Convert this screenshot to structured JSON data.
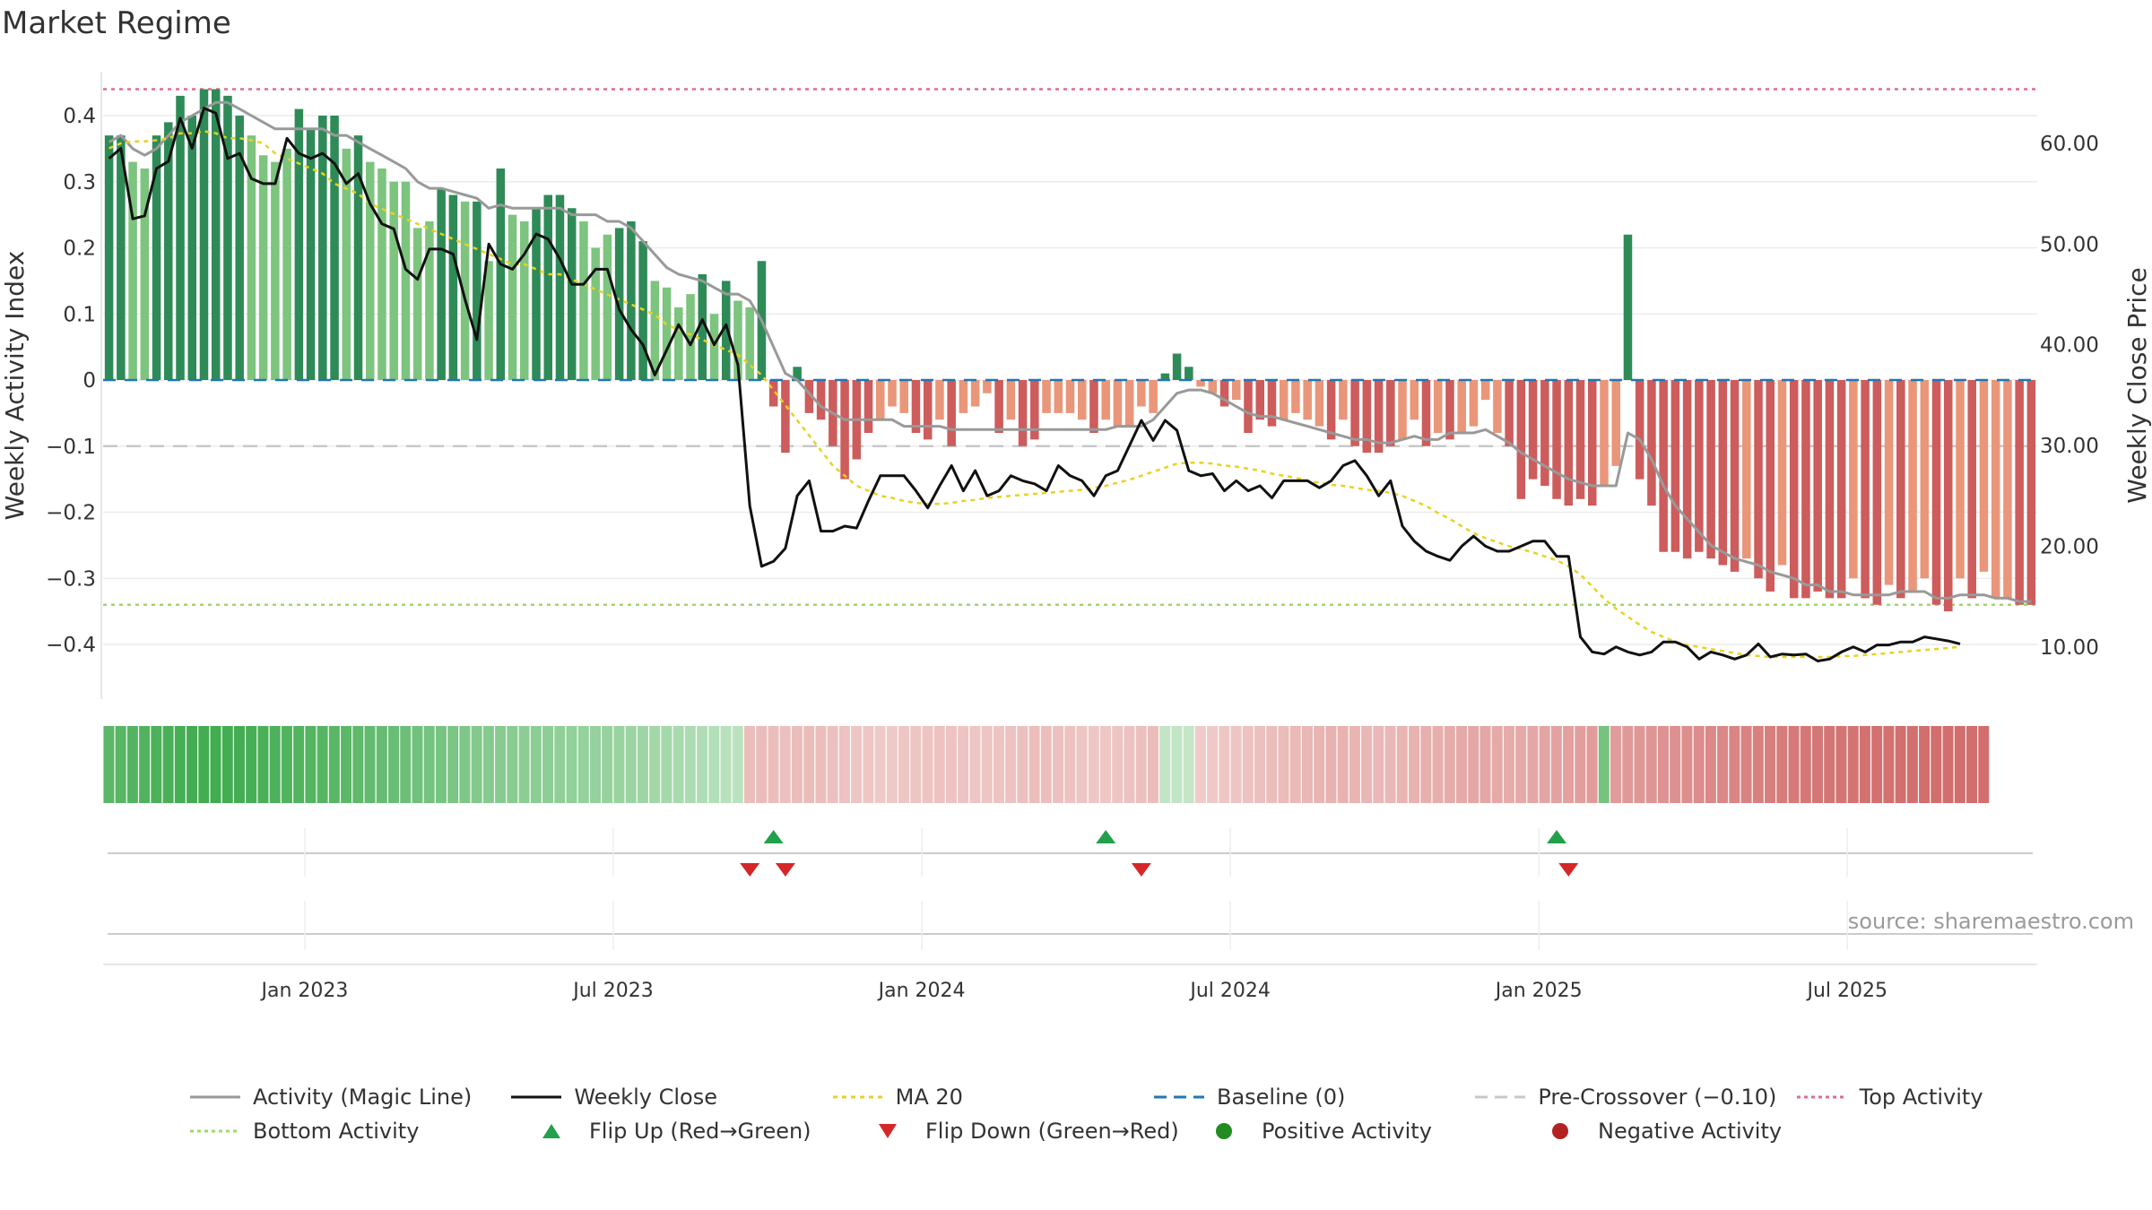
{
  "title": "Market Regime",
  "source": "source: sharemaestro.com",
  "chart_data": {
    "type": "bar",
    "title": "Market Regime",
    "ylabel": "Weekly Activity Index",
    "y2label": "Weekly Close Price",
    "ylim": [
      -0.48,
      0.48
    ],
    "y2lim": [
      5,
      68
    ],
    "yticks": [
      -0.4,
      -0.3,
      -0.2,
      -0.1,
      0,
      0.1,
      0.2,
      0.3,
      0.4
    ],
    "ytick_labels": [
      "−0.4",
      "−0.3",
      "−0.2",
      "−0.1",
      "0",
      "0.1",
      "0.2",
      "0.3",
      "0.4"
    ],
    "y2ticks": [
      10,
      20,
      30,
      40,
      50,
      60
    ],
    "y2tick_labels": [
      "10.00",
      "20.00",
      "30.00",
      "40.00",
      "50.00",
      "60.00"
    ],
    "xticks": [
      {
        "label": "Jan 2023",
        "week": 17
      },
      {
        "label": "Jul 2023",
        "week": 43
      },
      {
        "label": "Jan 2024",
        "week": 69
      },
      {
        "label": "Jul 2024",
        "week": 95
      },
      {
        "label": "Jan 2025",
        "week": 121
      },
      {
        "label": "Jul 2025",
        "week": 147
      }
    ],
    "top_activity": 0.44,
    "bottom_activity": -0.34,
    "pre_crossover": -0.1,
    "baseline": 0,
    "activity": [
      0.37,
      0.37,
      0.33,
      0.32,
      0.37,
      0.39,
      0.43,
      0.4,
      0.44,
      0.44,
      0.43,
      0.4,
      0.37,
      0.34,
      0.33,
      0.35,
      0.41,
      0.38,
      0.4,
      0.4,
      0.35,
      0.37,
      0.33,
      0.32,
      0.3,
      0.3,
      0.23,
      0.24,
      0.29,
      0.28,
      0.27,
      0.27,
      0.18,
      0.32,
      0.25,
      0.24,
      0.26,
      0.28,
      0.28,
      0.26,
      0.24,
      0.2,
      0.22,
      0.23,
      0.24,
      0.21,
      0.15,
      0.14,
      0.11,
      0.13,
      0.16,
      0.1,
      0.15,
      0.12,
      0.11,
      0.18,
      -0.04,
      -0.11,
      0.02,
      -0.05,
      -0.06,
      -0.1,
      -0.15,
      -0.12,
      -0.08,
      -0.06,
      -0.04,
      -0.05,
      -0.08,
      -0.09,
      -0.06,
      -0.1,
      -0.05,
      -0.04,
      -0.02,
      -0.08,
      -0.06,
      -0.1,
      -0.09,
      -0.05,
      -0.05,
      -0.05,
      -0.06,
      -0.08,
      -0.06,
      -0.07,
      -0.07,
      -0.04,
      -0.05,
      0.01,
      0.04,
      0.02,
      -0.01,
      -0.02,
      -0.04,
      -0.03,
      -0.08,
      -0.06,
      -0.07,
      -0.06,
      -0.05,
      -0.06,
      -0.07,
      -0.09,
      -0.06,
      -0.1,
      -0.11,
      -0.11,
      -0.1,
      -0.09,
      -0.06,
      -0.1,
      -0.08,
      -0.09,
      -0.08,
      -0.07,
      -0.03,
      -0.08,
      -0.1,
      -0.18,
      -0.15,
      -0.16,
      -0.18,
      -0.19,
      -0.18,
      -0.19,
      -0.16,
      -0.13,
      0.22,
      -0.15,
      -0.19,
      -0.26,
      -0.26,
      -0.27,
      -0.26,
      -0.27,
      -0.28,
      -0.29,
      -0.27,
      -0.3,
      -0.32,
      -0.28,
      -0.33,
      -0.33,
      -0.32,
      -0.33,
      -0.33,
      -0.3,
      -0.33,
      -0.34,
      -0.31,
      -0.33,
      -0.32,
      -0.3,
      -0.34,
      -0.35,
      -0.3,
      -0.33,
      -0.29,
      -0.33,
      -0.33,
      -0.34,
      -0.34
    ],
    "magic_line": [
      0.36,
      0.37,
      0.35,
      0.34,
      0.35,
      0.37,
      0.39,
      0.4,
      0.41,
      0.42,
      0.42,
      0.41,
      0.4,
      0.39,
      0.38,
      0.38,
      0.38,
      0.38,
      0.38,
      0.37,
      0.37,
      0.36,
      0.35,
      0.34,
      0.33,
      0.32,
      0.3,
      0.29,
      0.29,
      0.285,
      0.28,
      0.275,
      0.26,
      0.265,
      0.26,
      0.26,
      0.26,
      0.26,
      0.26,
      0.25,
      0.25,
      0.25,
      0.24,
      0.24,
      0.23,
      0.21,
      0.19,
      0.17,
      0.16,
      0.155,
      0.15,
      0.14,
      0.13,
      0.13,
      0.12,
      0.09,
      0.05,
      0.01,
      0.0,
      -0.02,
      -0.04,
      -0.05,
      -0.06,
      -0.06,
      -0.06,
      -0.06,
      -0.06,
      -0.07,
      -0.07,
      -0.07,
      -0.07,
      -0.075,
      -0.075,
      -0.075,
      -0.075,
      -0.075,
      -0.075,
      -0.075,
      -0.075,
      -0.075,
      -0.075,
      -0.075,
      -0.075,
      -0.075,
      -0.075,
      -0.07,
      -0.07,
      -0.07,
      -0.06,
      -0.04,
      -0.02,
      -0.015,
      -0.015,
      -0.02,
      -0.03,
      -0.04,
      -0.05,
      -0.055,
      -0.055,
      -0.06,
      -0.065,
      -0.07,
      -0.075,
      -0.08,
      -0.085,
      -0.09,
      -0.09,
      -0.095,
      -0.095,
      -0.09,
      -0.085,
      -0.09,
      -0.09,
      -0.08,
      -0.08,
      -0.08,
      -0.075,
      -0.085,
      -0.095,
      -0.11,
      -0.12,
      -0.13,
      -0.14,
      -0.15,
      -0.155,
      -0.16,
      -0.16,
      -0.16,
      -0.08,
      -0.09,
      -0.12,
      -0.16,
      -0.19,
      -0.21,
      -0.23,
      -0.25,
      -0.26,
      -0.27,
      -0.275,
      -0.28,
      -0.29,
      -0.295,
      -0.3,
      -0.31,
      -0.31,
      -0.32,
      -0.32,
      -0.325,
      -0.325,
      -0.325,
      -0.325,
      -0.32,
      -0.32,
      -0.32,
      -0.33,
      -0.33,
      -0.325,
      -0.325,
      -0.325,
      -0.33,
      -0.33,
      -0.335,
      -0.335
    ],
    "weekly_close": [
      58.5,
      59.5,
      52.5,
      52.8,
      57.5,
      58.2,
      62.5,
      59.5,
      63.5,
      63.0,
      58.5,
      59.0,
      56.5,
      56.0,
      56.0,
      60.5,
      59.0,
      58.5,
      59.0,
      58.0,
      56.0,
      57.0,
      54.0,
      52.0,
      51.5,
      47.5,
      46.5,
      49.5,
      49.5,
      49.0,
      44.5,
      40.5,
      50.0,
      48.0,
      47.5,
      49.0,
      51.0,
      50.5,
      48.5,
      46.0,
      46.0,
      47.5,
      47.5,
      43.5,
      41.5,
      40.0,
      37.0,
      39.5,
      42.0,
      40.0,
      42.5,
      40.0,
      42.0,
      38.0,
      24.0,
      18.0,
      18.5,
      19.8,
      25.0,
      26.5,
      21.5,
      21.5,
      22.0,
      21.8,
      24.5,
      27.0,
      27.0,
      27.0,
      25.5,
      23.8,
      26.0,
      28.0,
      25.5,
      27.5,
      25.0,
      25.5,
      27.0,
      26.5,
      26.2,
      25.5,
      28.0,
      27.0,
      26.5,
      25.0,
      27.0,
      27.5,
      30.0,
      32.5,
      30.5,
      32.5,
      31.5,
      27.5,
      27.0,
      27.2,
      25.5,
      26.5,
      25.5,
      26.0,
      24.8,
      26.5,
      26.5,
      26.5,
      25.8,
      26.5,
      28.0,
      28.5,
      27.0,
      25.0,
      26.5,
      22.0,
      20.5,
      19.5,
      19.0,
      18.6,
      20.0,
      21.0,
      20.0,
      19.5,
      19.5,
      20.0,
      20.5,
      20.5,
      19.0,
      19.0,
      11.0,
      9.5,
      9.3,
      10.0,
      9.5,
      9.2,
      9.5,
      10.5,
      10.5,
      10.0,
      8.8,
      9.5,
      9.2,
      8.8,
      9.2,
      10.3,
      9.0,
      9.3,
      9.2,
      9.3,
      8.6,
      8.8,
      9.5,
      10.0,
      9.5,
      10.2,
      10.2,
      10.5,
      10.5,
      11.0,
      10.8,
      10.6,
      10.3
    ],
    "ma20": [
      59.5,
      60.0,
      60.2,
      60.2,
      60.3,
      60.5,
      61.0,
      61.0,
      61.2,
      61.0,
      60.5,
      60.5,
      60.3,
      60.0,
      59.0,
      58.5,
      58.0,
      57.5,
      57.0,
      56.0,
      55.5,
      55.0,
      54.0,
      53.5,
      53.0,
      52.5,
      52.0,
      51.5,
      51.0,
      50.5,
      50.0,
      49.5,
      49.0,
      48.5,
      48.0,
      48.0,
      47.5,
      47.0,
      47.0,
      46.5,
      46.0,
      45.5,
      45.0,
      44.5,
      44.0,
      43.5,
      43.0,
      42.0,
      41.5,
      41.0,
      40.5,
      40.0,
      39.5,
      39.0,
      38.0,
      37.0,
      35.5,
      34.0,
      32.5,
      31.0,
      29.5,
      28.0,
      27.0,
      26.0,
      25.5,
      25.0,
      24.8,
      24.5,
      24.3,
      24.2,
      24.2,
      24.3,
      24.5,
      24.6,
      24.8,
      24.9,
      25.0,
      25.1,
      25.2,
      25.3,
      25.4,
      25.5,
      25.6,
      25.8,
      26.0,
      26.3,
      26.6,
      27.0,
      27.4,
      27.8,
      28.2,
      28.3,
      28.3,
      28.2,
      28.0,
      27.9,
      27.7,
      27.5,
      27.2,
      27.0,
      26.8,
      26.5,
      26.3,
      26.1,
      26.0,
      25.8,
      25.6,
      25.5,
      25.3,
      25.0,
      24.5,
      24.0,
      23.3,
      22.7,
      22.0,
      21.3,
      20.8,
      20.4,
      20.0,
      19.7,
      19.4,
      19.0,
      18.6,
      18.0,
      17.2,
      16.0,
      14.8,
      13.8,
      13.0,
      12.2,
      11.5,
      11.0,
      10.5,
      10.2,
      10.0,
      9.8,
      9.6,
      9.4,
      9.2,
      9.1,
      9.0,
      9.0,
      9.0,
      9.0,
      9.0,
      9.0,
      9.1,
      9.1,
      9.2,
      9.3,
      9.4,
      9.5,
      9.6,
      9.7,
      9.8,
      9.9,
      10.0
    ],
    "regime_shade": [
      0.8,
      0.82,
      0.84,
      0.86,
      0.88,
      0.9,
      0.92,
      0.93,
      0.94,
      0.95,
      0.94,
      0.93,
      0.92,
      0.9,
      0.88,
      0.86,
      0.85,
      0.84,
      0.83,
      0.82,
      0.8,
      0.78,
      0.76,
      0.74,
      0.72,
      0.7,
      0.68,
      0.66,
      0.64,
      0.62,
      0.6,
      0.58,
      0.56,
      0.55,
      0.54,
      0.53,
      0.52,
      0.51,
      0.5,
      0.49,
      0.48,
      0.47,
      0.46,
      0.45,
      0.44,
      0.42,
      0.4,
      0.38,
      0.36,
      0.34,
      0.32,
      0.3,
      0.28,
      0.26,
      -0.3,
      -0.32,
      -0.3,
      -0.28,
      -0.3,
      -0.32,
      -0.3,
      -0.28,
      -0.26,
      -0.24,
      -0.22,
      -0.2,
      -0.2,
      -0.22,
      -0.24,
      -0.25,
      -0.26,
      -0.26,
      -0.25,
      -0.24,
      -0.24,
      -0.25,
      -0.26,
      -0.28,
      -0.3,
      -0.3,
      -0.28,
      -0.26,
      -0.24,
      -0.22,
      -0.22,
      -0.24,
      -0.26,
      -0.28,
      -0.3,
      0.22,
      0.22,
      0.2,
      -0.18,
      -0.2,
      -0.22,
      -0.24,
      -0.26,
      -0.28,
      -0.3,
      -0.32,
      -0.34,
      -0.36,
      -0.38,
      -0.4,
      -0.4,
      -0.38,
      -0.36,
      -0.35,
      -0.36,
      -0.38,
      -0.4,
      -0.42,
      -0.44,
      -0.46,
      -0.48,
      -0.5,
      -0.5,
      -0.48,
      -0.46,
      -0.48,
      -0.5,
      -0.52,
      -0.54,
      -0.56,
      -0.58,
      -0.6,
      0.65,
      -0.6,
      -0.62,
      -0.64,
      -0.66,
      -0.68,
      -0.7,
      -0.72,
      -0.74,
      -0.76,
      -0.78,
      -0.8,
      -0.82,
      -0.84,
      -0.86,
      -0.88,
      -0.9,
      -0.92,
      -0.93,
      -0.94,
      -0.95,
      -0.96,
      -0.97,
      -0.98,
      -0.98,
      -0.99,
      -0.99,
      -1.0,
      -1.0,
      -1.0,
      -1.0,
      -1.0,
      -1.0
    ],
    "flip_up_weeks": [
      56,
      84,
      122
    ],
    "flip_down_weeks": [
      54,
      57,
      87,
      123
    ],
    "colors": {
      "pos_strong": "#2e8b57",
      "pos_light": "#7dc47f",
      "neg_strong": "#cd5c5c",
      "neg_light": "#e9967a",
      "magic_line": "#999999",
      "weekly_close": "#111111",
      "ma20": "#e8d222",
      "baseline": "#1f77b4",
      "pre_crossover": "#c8c8c8",
      "top_activity": "#e06c8a",
      "bottom_activity": "#9fd86a",
      "flip_up": "#22a04b",
      "flip_down": "#d62728",
      "positive_activity": "#228b22",
      "negative_activity": "#b22222"
    }
  },
  "legend": [
    {
      "label": "Activity (Magic Line)",
      "kind": "line",
      "color": "#999999",
      "dash": ""
    },
    {
      "label": "Weekly Close",
      "kind": "line",
      "color": "#111111",
      "dash": ""
    },
    {
      "label": "MA 20",
      "kind": "line",
      "color": "#e8d222",
      "dash": "5,5"
    },
    {
      "label": "Baseline (0)",
      "kind": "line",
      "color": "#1f77b4",
      "dash": "14,8"
    },
    {
      "label": "Pre-Crossover (−0.10)",
      "kind": "line",
      "color": "#c8c8c8",
      "dash": "14,8"
    },
    {
      "label": "Top Activity",
      "kind": "line",
      "color": "#e06c8a",
      "dash": "4,4"
    },
    {
      "label": "Bottom Activity",
      "kind": "line",
      "color": "#9fd86a",
      "dash": "4,4"
    },
    {
      "label": "Flip Up (Red→Green)",
      "kind": "tri-up",
      "color": "#22a04b",
      "dash": ""
    },
    {
      "label": "Flip Down (Green→Red)",
      "kind": "tri-down",
      "color": "#d62728",
      "dash": ""
    },
    {
      "label": "Positive Activity",
      "kind": "dot",
      "color": "#228b22",
      "dash": ""
    },
    {
      "label": "Negative Activity",
      "kind": "dot",
      "color": "#b22222",
      "dash": ""
    }
  ]
}
